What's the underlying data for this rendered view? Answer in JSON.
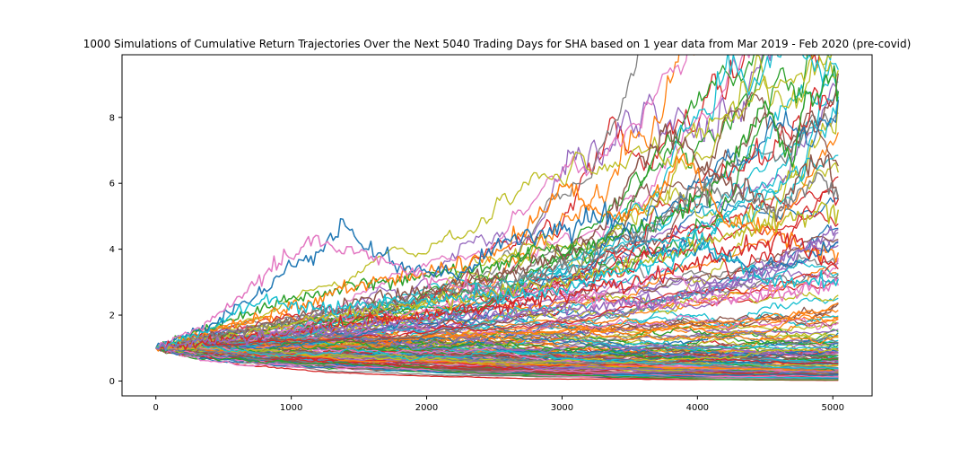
{
  "chart_data": {
    "type": "line",
    "title": "1000 Simulations of Cumulative Return Trajectories Over the Next 5040 Trading Days for SHA based on 1 year data from Mar 2019 - Feb 2020 (pre-covid)",
    "xlabel": "",
    "ylabel": "",
    "xlim": [
      -250,
      5290
    ],
    "ylim": [
      -0.45,
      9.9
    ],
    "x_ticks": [
      0,
      1000,
      2000,
      3000,
      4000,
      5000
    ],
    "y_ticks": [
      0,
      2,
      4,
      6,
      8
    ],
    "grid": false,
    "legend": "none",
    "n_simulations": 1000,
    "n_steps": 5040,
    "start_value": 1.0,
    "palette": [
      "#1f77b4",
      "#ff7f0e",
      "#2ca02c",
      "#d62728",
      "#9467bd",
      "#8c564b",
      "#e377c2",
      "#7f7f7f",
      "#bcbd22",
      "#17becf"
    ],
    "series": [
      {
        "color": "#2ca02c",
        "x": [
          0,
          500,
          1000,
          1500,
          2000,
          2500,
          3000,
          3500,
          3800,
          4000,
          4200,
          4500,
          4700,
          4800,
          4900,
          5000,
          5040
        ],
        "values": [
          1.0,
          1.8,
          2.5,
          2.9,
          3.2,
          3.5,
          3.8,
          4.5,
          5.0,
          5.6,
          6.2,
          8.5,
          6.5,
          8.8,
          8.6,
          9.3,
          8.8
        ]
      },
      {
        "color": "#8c564b",
        "x": [
          0,
          500,
          1000,
          1500,
          2000,
          2500,
          3000,
          3300,
          3600,
          3800,
          4000,
          4300,
          4600,
          4800,
          4950,
          5040
        ],
        "values": [
          1.0,
          1.4,
          1.9,
          2.4,
          2.8,
          3.2,
          3.8,
          4.6,
          6.8,
          7.6,
          6.6,
          5.9,
          5.2,
          6.6,
          6.8,
          5.5
        ]
      },
      {
        "color": "#ff7f0e",
        "x": [
          0,
          500,
          1000,
          1500,
          2000,
          2500,
          2800,
          3000,
          3300,
          3600,
          3900,
          4200,
          4500,
          4800,
          5040
        ],
        "values": [
          1.0,
          1.6,
          2.2,
          2.9,
          3.3,
          3.8,
          4.9,
          5.9,
          5.0,
          5.1,
          6.9,
          4.8,
          4.6,
          3.9,
          3.9
        ]
      },
      {
        "color": "#1f77b4",
        "x": [
          0,
          400,
          800,
          1000,
          1200,
          1400,
          1500,
          1800,
          2000,
          2300,
          2600,
          3000,
          3300,
          3700,
          4000,
          4400,
          4800,
          5040
        ],
        "values": [
          1.0,
          1.7,
          2.8,
          3.5,
          3.9,
          4.7,
          4.2,
          3.5,
          3.3,
          3.4,
          4.3,
          4.6,
          5.1,
          3.9,
          4.1,
          3.4,
          3.7,
          4.2
        ]
      },
      {
        "color": "#e377c2",
        "x": [
          0,
          400,
          800,
          1200,
          1300,
          1500,
          1700,
          2000,
          2400,
          2800,
          3200,
          3600,
          4000,
          4500,
          5040
        ],
        "values": [
          1.0,
          1.8,
          3.2,
          4.4,
          4.1,
          3.9,
          3.6,
          3.1,
          2.8,
          2.7,
          2.5,
          2.3,
          2.4,
          2.6,
          2.9
        ]
      },
      {
        "color": "#7f7f7f",
        "x": [
          0,
          600,
          1200,
          1800,
          2400,
          3000,
          3600,
          4000,
          4200,
          4600,
          4900,
          5040
        ],
        "values": [
          1.0,
          1.5,
          2.0,
          2.4,
          2.8,
          3.4,
          4.4,
          5.9,
          5.7,
          5.2,
          6.3,
          5.6
        ]
      },
      {
        "color": "#bcbd22",
        "x": [
          0,
          600,
          1200,
          1800,
          2400,
          3000,
          3600,
          4200,
          4600,
          4900,
          5040
        ],
        "values": [
          1.0,
          1.4,
          1.9,
          2.3,
          2.6,
          3.0,
          3.6,
          4.4,
          4.8,
          5.3,
          5.2
        ]
      },
      {
        "color": "#d62728",
        "x": [
          0,
          600,
          1200,
          1800,
          2400,
          3000,
          3600,
          4200,
          4700,
          5040
        ],
        "values": [
          1.0,
          1.3,
          1.6,
          1.9,
          2.2,
          2.6,
          3.0,
          3.9,
          4.3,
          3.4
        ]
      },
      {
        "color": "#17becf",
        "x": [
          0,
          400,
          800,
          1200,
          1800,
          2400,
          3000,
          3600,
          4000,
          4500,
          5040
        ],
        "values": [
          1.0,
          1.6,
          2.5,
          2.2,
          2.4,
          2.6,
          2.8,
          3.5,
          4.3,
          3.0,
          3.1
        ]
      },
      {
        "color": "#9467bd",
        "x": [
          0,
          600,
          1200,
          1800,
          2400,
          3000,
          3600,
          4200,
          4800,
          5040
        ],
        "values": [
          1.0,
          1.3,
          1.6,
          1.8,
          2.0,
          2.2,
          2.4,
          2.8,
          4.0,
          4.6
        ]
      }
    ]
  }
}
